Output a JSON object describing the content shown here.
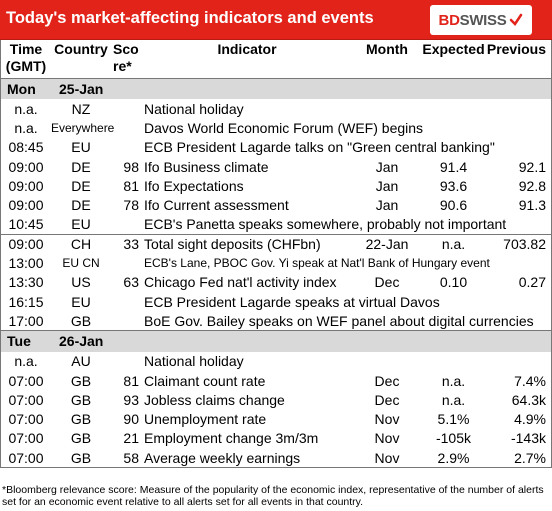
{
  "header": {
    "title": "Today's market-affecting indicators and events",
    "logo_bd": "BD",
    "logo_swiss": "SWISS"
  },
  "columns": {
    "time": "Time (GMT)",
    "country": "Country",
    "score": "Sco re*",
    "indicator": "Indicator",
    "month": "Month",
    "expected": "Expected",
    "previous": "Previous"
  },
  "days": [
    {
      "day": "Mon",
      "date": "25-Jan",
      "events": [
        {
          "time": "n.a.",
          "country": "NZ",
          "score": "",
          "indicator": "National holiday",
          "month": "",
          "expected": "",
          "previous": ""
        },
        {
          "time": "n.a.",
          "country": "Everywhere",
          "score": "",
          "indicator": "Davos World Economic Forum (WEF) begins",
          "month": "",
          "expected": "",
          "previous": ""
        },
        {
          "time": "08:45",
          "country": "EU",
          "score": "",
          "indicator": "ECB President Lagarde talks on \"Green central banking\"",
          "month": "",
          "expected": "",
          "previous": ""
        },
        {
          "time": "09:00",
          "country": "DE",
          "score": "98",
          "indicator": "Ifo Business climate",
          "month": "Jan",
          "expected": "91.4",
          "previous": "92.1"
        },
        {
          "time": "09:00",
          "country": "DE",
          "score": "81",
          "indicator": "Ifo Expectations",
          "month": "Jan",
          "expected": "93.6",
          "previous": "92.8"
        },
        {
          "time": "09:00",
          "country": "DE",
          "score": "78",
          "indicator": "Ifo Current assessment",
          "month": "Jan",
          "expected": "90.6",
          "previous": "91.3"
        },
        {
          "time": "10:45",
          "country": "EU",
          "score": "",
          "indicator": "ECB's Panetta speaks somewhere, probably not important",
          "month": "",
          "expected": "",
          "previous": ""
        },
        {
          "time": "09:00",
          "country": "CH",
          "score": "33",
          "indicator": "Total sight deposits (CHFbn)",
          "month": "22-Jan",
          "expected": "n.a.",
          "previous": "703.82"
        },
        {
          "time": "13:00",
          "country": "EU CN",
          "score": "",
          "indicator": "ECB's Lane, PBOC Gov. Yi speak at Nat'l Bank of Hungary event",
          "month": "",
          "expected": "",
          "previous": ""
        },
        {
          "time": "13:30",
          "country": "US",
          "score": "63",
          "indicator": "Chicago Fed nat'l activity index",
          "month": "Dec",
          "expected": "0.10",
          "previous": "0.27"
        },
        {
          "time": "16:15",
          "country": "EU",
          "score": "",
          "indicator": "ECB President Lagarde speaks at virtual Davos",
          "month": "",
          "expected": "",
          "previous": ""
        },
        {
          "time": "17:00",
          "country": "GB",
          "score": "",
          "indicator": "BoE Gov. Bailey speaks on WEF panel about digital currencies",
          "month": "",
          "expected": "",
          "previous": ""
        }
      ]
    },
    {
      "day": "Tue",
      "date": "26-Jan",
      "events": [
        {
          "time": "n.a.",
          "country": "AU",
          "score": "",
          "indicator": "National holiday",
          "month": "",
          "expected": "",
          "previous": ""
        },
        {
          "time": "07:00",
          "country": "GB",
          "score": "81",
          "indicator": "Claimant count rate",
          "month": "Dec",
          "expected": "n.a.",
          "previous": "7.4%"
        },
        {
          "time": "07:00",
          "country": "GB",
          "score": "93",
          "indicator": "Jobless claims change",
          "month": "Dec",
          "expected": "n.a.",
          "previous": "64.3k"
        },
        {
          "time": "07:00",
          "country": "GB",
          "score": "90",
          "indicator": "Unemployment rate",
          "month": "Nov",
          "expected": "5.1%",
          "previous": "4.9%"
        },
        {
          "time": "07:00",
          "country": "GB",
          "score": "21",
          "indicator": "Employment change 3m/3m",
          "month": "Nov",
          "expected": "-105k",
          "previous": "-143k"
        },
        {
          "time": "07:00",
          "country": "GB",
          "score": "58",
          "indicator": "Average weekly earnings",
          "month": "Nov",
          "expected": "2.9%",
          "previous": "2.7%"
        }
      ]
    }
  ],
  "footnote": "*Bloomberg relevance score: Measure of the popularity of the economic index, representative of the number of alerts set for an economic event relative to all alerts set for all events in that country."
}
